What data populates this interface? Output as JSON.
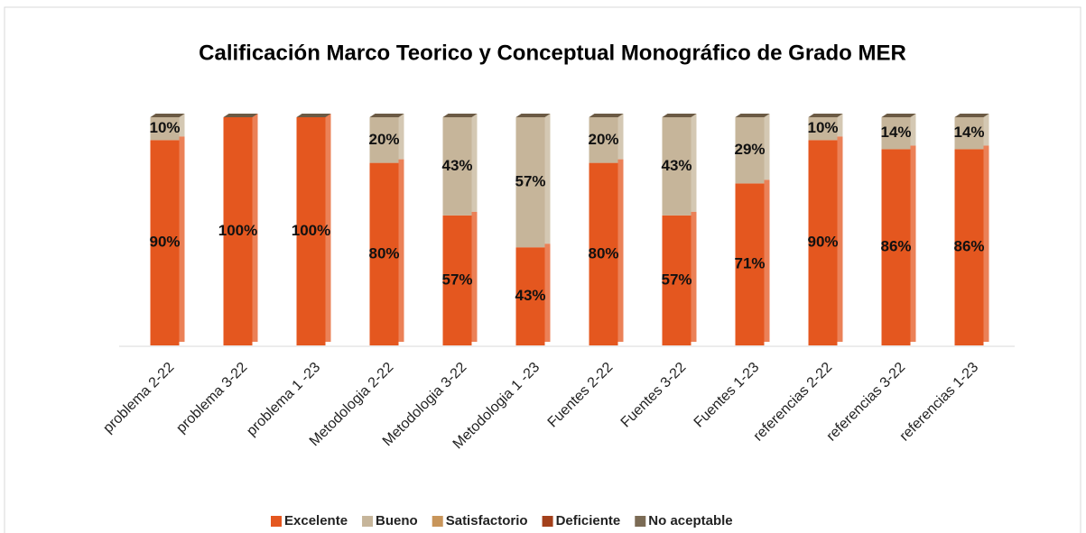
{
  "chart_data": {
    "type": "stacked_bar",
    "title": "Calificación Marco Teorico y Conceptual  Monográfico de Grado MER",
    "categories": [
      "problema 2-22",
      "problema 3-22",
      "problema 1 -23",
      "Metodologia 2-22",
      "Metodologia 3-22",
      "Metodologia 1 -23",
      "Fuentes 2-22",
      "Fuentes 3-22",
      "Fuentes 1-23",
      "referencias 2-22",
      "referencias 3-22",
      "referencias 1-23"
    ],
    "series": [
      {
        "name": "Excelente",
        "color": "#e4571f",
        "values": [
          90,
          100,
          100,
          80,
          57,
          43,
          80,
          57,
          71,
          90,
          86,
          86
        ],
        "value_labels": [
          "90%",
          "100%",
          "100%",
          "80%",
          "57%",
          "43%",
          "80%",
          "57%",
          "71%",
          "90%",
          "86%",
          "86%"
        ]
      },
      {
        "name": "Bueno",
        "color": "#c6b59a",
        "values": [
          10,
          0,
          0,
          20,
          43,
          57,
          20,
          43,
          29,
          10,
          14,
          14
        ],
        "value_labels": [
          "10%",
          null,
          null,
          "20%",
          "43%",
          "57%",
          "20%",
          "43%",
          "29%",
          "10%",
          "14%",
          "14%"
        ]
      },
      {
        "name": "Satisfactorio",
        "color": "#c8955a",
        "values": [
          0,
          0,
          0,
          0,
          0,
          0,
          0,
          0,
          0,
          0,
          0,
          0
        ]
      },
      {
        "name": "Deficiente",
        "color": "#a3401b",
        "values": [
          0,
          0,
          0,
          0,
          0,
          0,
          0,
          0,
          0,
          0,
          0,
          0
        ]
      },
      {
        "name": "No aceptable",
        "color": "#7b6b55",
        "values": [
          0,
          0,
          0,
          0,
          0,
          0,
          0,
          0,
          0,
          0,
          0,
          0
        ]
      }
    ],
    "ylim": [
      0,
      100
    ],
    "legend": "bottom"
  }
}
